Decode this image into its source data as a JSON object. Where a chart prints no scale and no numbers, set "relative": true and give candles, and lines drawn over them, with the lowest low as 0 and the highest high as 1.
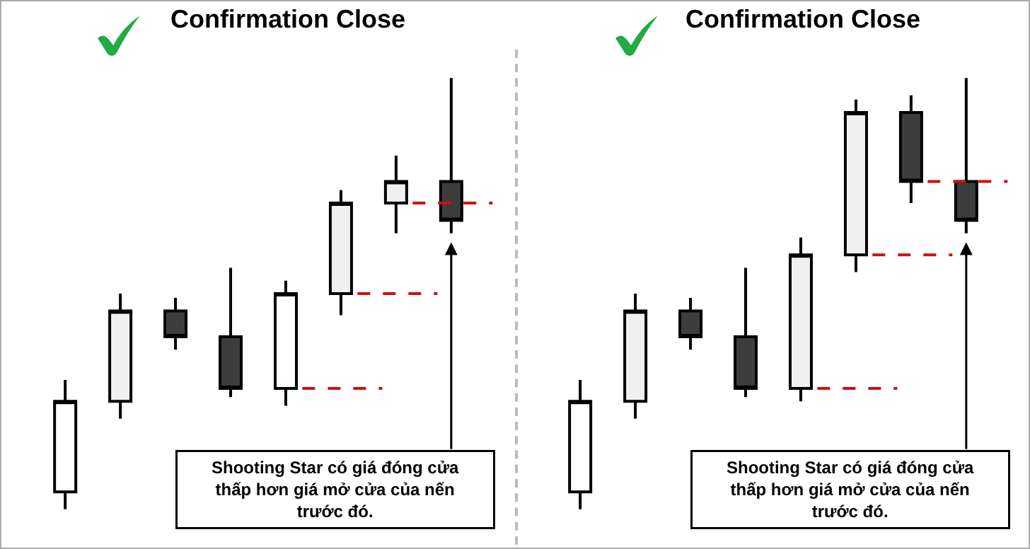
{
  "chart_data": [
    {
      "type": "candlestick",
      "title": "Confirmation Close",
      "relative": true,
      "categories": [
        null,
        null,
        null,
        null,
        null,
        null,
        null,
        null
      ],
      "ohlc": [
        [
          0.04,
          0.3,
          0,
          0.25
        ],
        [
          0.25,
          0.5,
          0.21,
          0.46
        ],
        [
          0.46,
          0.49,
          0.37,
          0.4
        ],
        [
          0.4,
          0.56,
          0.26,
          0.28
        ],
        [
          0.28,
          0.53,
          0.24,
          0.5
        ],
        [
          0.5,
          0.74,
          0.45,
          0.71
        ],
        [
          0.71,
          0.82,
          0.64,
          0.76
        ],
        [
          0.76,
          1,
          0.64,
          0.67
        ]
      ],
      "colors": [
        "#ffffff",
        "#f0f0f0",
        "#3d3d3d",
        "#3d3d3d",
        "#ffffff",
        "#f0f0f0",
        "#f0f0f0",
        "#3d3d3d"
      ],
      "ref_lines": [
        {
          "axis": "y",
          "value": 0.28,
          "color": "#cc1111",
          "line_style": "dashed"
        },
        {
          "axis": "y",
          "value": 0.5,
          "color": "#cc1111",
          "line_style": "dashed"
        },
        {
          "axis": "y",
          "value": 0.71,
          "color": "#cc1111",
          "line_style": "dashed"
        }
      ],
      "annotations": [
        "Shooting Star có giá đóng cửa\nthấp hơn giá mở cửa của nến\ntrước đó."
      ]
    },
    {
      "type": "candlestick",
      "title": "Confirmation Close",
      "relative": true,
      "categories": [
        null,
        null,
        null,
        null,
        null,
        null,
        null,
        null
      ],
      "ohlc": [
        [
          0.04,
          0.3,
          0,
          0.25
        ],
        [
          0.25,
          0.5,
          0.21,
          0.46
        ],
        [
          0.46,
          0.49,
          0.37,
          0.4
        ],
        [
          0.4,
          0.56,
          0.26,
          0.28
        ],
        [
          0.28,
          0.63,
          0.25,
          0.59
        ],
        [
          0.59,
          0.95,
          0.55,
          0.92
        ],
        [
          0.92,
          0.96,
          0.71,
          0.76
        ],
        [
          0.76,
          1,
          0.64,
          0.67
        ]
      ],
      "colors": [
        "#ffffff",
        "#f0f0f0",
        "#3d3d3d",
        "#3d3d3d",
        "#f0f0f0",
        "#f0f0f0",
        "#3d3d3d",
        "#3d3d3d"
      ],
      "ref_lines": [
        {
          "axis": "y",
          "value": 0.28,
          "color": "#cc1111",
          "line_style": "dashed"
        },
        {
          "axis": "y",
          "value": 0.59,
          "color": "#cc1111",
          "line_style": "dashed"
        },
        {
          "axis": "y",
          "value": 0.76,
          "color": "#cc1111",
          "line_style": "dashed"
        }
      ],
      "annotations": [
        "Shooting Star có giá đóng cửa\nthấp hơn giá mở cửa của nến\ntrước đó."
      ]
    }
  ]
}
